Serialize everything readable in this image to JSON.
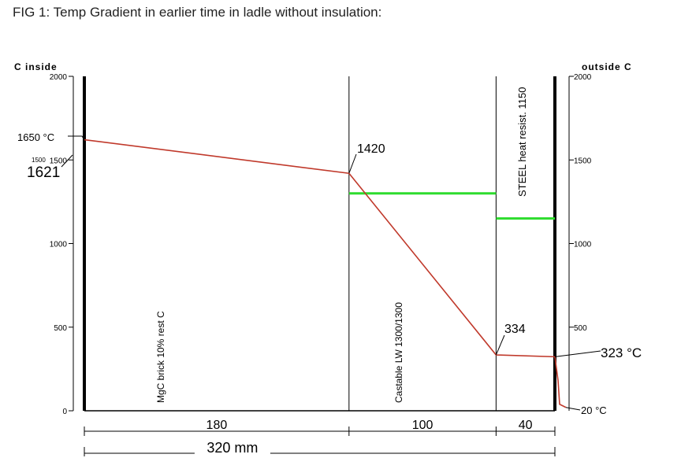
{
  "figure_title": "FIG 1: Temp Gradient in earlier time in ladle without insulation:",
  "colors": {
    "profile": "#c0392b",
    "green": "#2ddc2d",
    "axis": "#000000"
  },
  "chart_data": {
    "type": "line",
    "title": "FIG 1: Temp Gradient in earlier time in ladle without insulation:",
    "left_axis": {
      "label": "C inside",
      "ticks": [
        0,
        500,
        1000,
        1500,
        2000
      ],
      "range": [
        0,
        2000
      ]
    },
    "right_axis": {
      "label": "outside C",
      "ticks": [
        500,
        1000,
        1500,
        2000
      ],
      "range": [
        0,
        2000
      ]
    },
    "layers": [
      {
        "label": "MgC brick 10% rest C",
        "thickness": 180,
        "thickness_label": "180"
      },
      {
        "label": "Castable LW 1300/1300",
        "thickness": 100,
        "thickness_label": "100"
      },
      {
        "label": "STEEL heat resist. 1150",
        "thickness": 40,
        "thickness_label": "40"
      }
    ],
    "total_label": "320 mm",
    "series": [
      {
        "x": [
          0,
          180,
          280,
          320
        ],
        "y": [
          1621,
          1420,
          334,
          323
        ]
      }
    ],
    "green_limits": [
      {
        "layer": 1,
        "value": 1300
      },
      {
        "layer": 2,
        "value": 1150
      }
    ],
    "annotations": {
      "inside_temp": "1650 °C",
      "inside_temp_point": "1621",
      "inside_tick_overlap": "1500",
      "interface_1": "1420",
      "interface_2": "334",
      "outside_surface": "323 °C",
      "ambient": "20 °C",
      "ambient_value": 20
    }
  }
}
